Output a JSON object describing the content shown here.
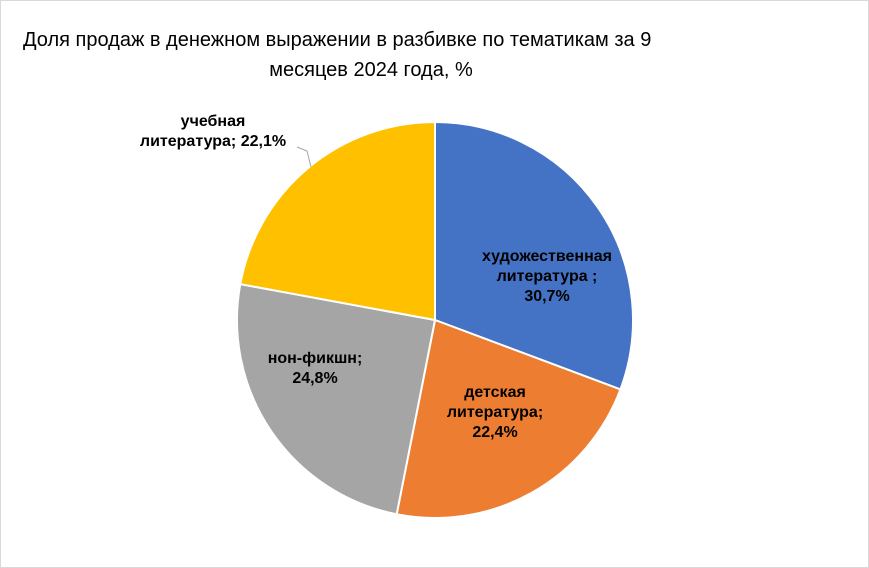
{
  "chart_data": {
    "type": "pie",
    "title_line1": "Доля продаж в денежном выражении в разбивке по тематикам за 9",
    "title_line2": "месяцев 2024 года, %",
    "slices": [
      {
        "label_lines": [
          "художественная",
          "литература ;",
          "30,7%"
        ],
        "category": "художественная литература",
        "value": 30.7,
        "color": "#4472c4"
      },
      {
        "label_lines": [
          "детская",
          "литература;",
          "22,4%"
        ],
        "category": "детская литература",
        "value": 22.4,
        "color": "#ed7d31"
      },
      {
        "label_lines": [
          "нон-фикшн;",
          "24,8%"
        ],
        "category": "нон-фикшн",
        "value": 24.8,
        "color": "#a5a5a5"
      },
      {
        "label_lines": [
          "учебная",
          "литература; 22,1%"
        ],
        "category": "учебная литература",
        "value": 22.1,
        "color": "#ffc000"
      }
    ],
    "legend": "none",
    "start_angle": "12 o'clock",
    "direction": "clockwise"
  }
}
